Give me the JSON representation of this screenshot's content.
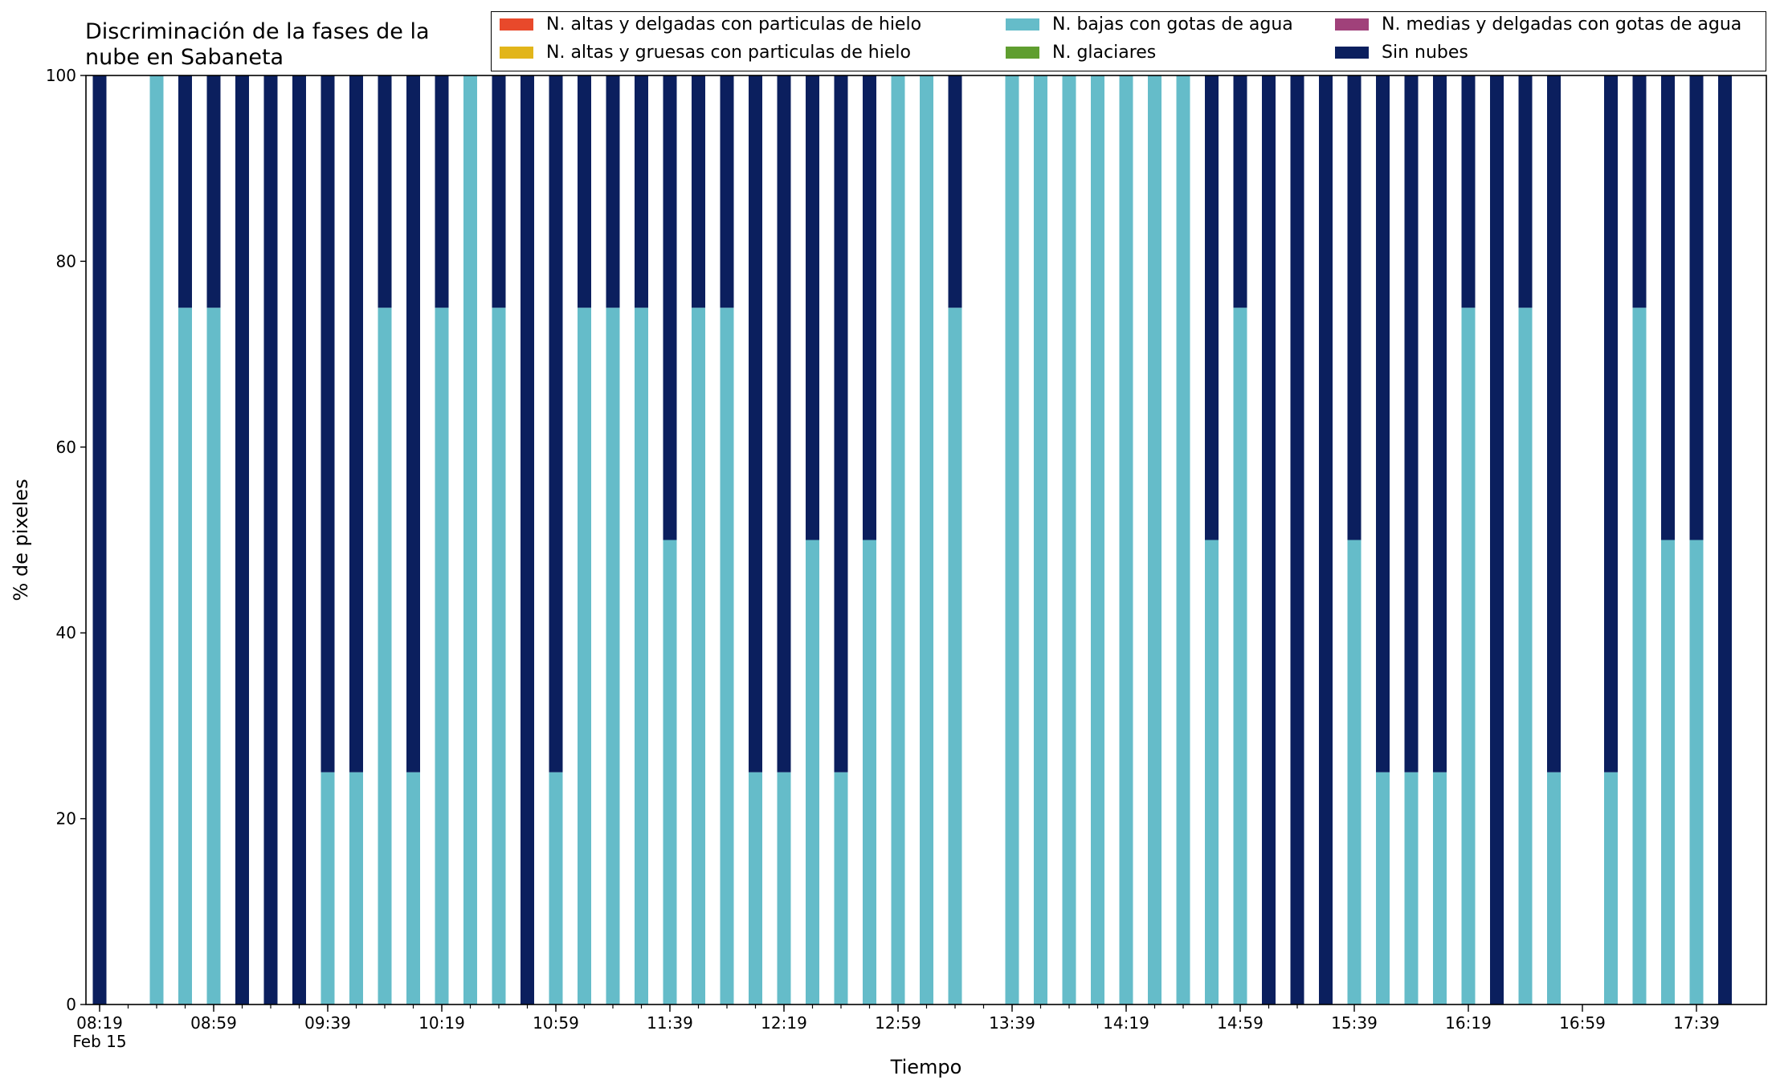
{
  "chart_data": {
    "type": "bar",
    "stacked": true,
    "title": "Discriminación de la fases de la\nnube en Sabaneta",
    "xlabel": "Tiempo",
    "ylabel": "% de pixeles",
    "ylim": [
      0,
      100
    ],
    "yticks": [
      "0",
      "20",
      "40",
      "60",
      "80",
      "100"
    ],
    "xtick_labels": [
      "08:19",
      "08:59",
      "09:39",
      "10:19",
      "10:59",
      "11:39",
      "12:19",
      "12:59",
      "13:39",
      "14:19",
      "14:59",
      "15:39",
      "16:19",
      "16:59",
      "17:39"
    ],
    "xtick_sublabel": "Feb 15",
    "grid": false,
    "legend_position": "top-right",
    "categories": [
      "08:19",
      "08:29",
      "08:39",
      "08:49",
      "08:59",
      "09:09",
      "09:19",
      "09:29",
      "09:39",
      "09:49",
      "09:59",
      "10:09",
      "10:19",
      "10:29",
      "10:39",
      "10:49",
      "10:59",
      "11:09",
      "11:19",
      "11:29",
      "11:39",
      "11:49",
      "11:59",
      "12:09",
      "12:19",
      "12:29",
      "12:39",
      "12:49",
      "12:59",
      "13:09",
      "13:19",
      "13:29",
      "13:39",
      "13:49",
      "13:59",
      "14:09",
      "14:19",
      "14:29",
      "14:39",
      "14:49",
      "14:59",
      "15:09",
      "15:19",
      "15:29",
      "15:39",
      "15:49",
      "15:59",
      "16:09",
      "16:19",
      "16:29",
      "16:39",
      "16:49",
      "16:59",
      "17:09",
      "17:19",
      "17:29",
      "17:39",
      "17:49"
    ],
    "series": [
      {
        "name": "N. altas y delgadas con particulas de hielo",
        "color": "#e8492b",
        "values": [
          0,
          0,
          0,
          0,
          0,
          0,
          0,
          0,
          0,
          0,
          0,
          0,
          0,
          0,
          0,
          0,
          0,
          0,
          0,
          0,
          0,
          0,
          0,
          0,
          0,
          0,
          0,
          0,
          0,
          0,
          0,
          0,
          0,
          0,
          0,
          0,
          0,
          0,
          0,
          0,
          0,
          0,
          0,
          0,
          0,
          0,
          0,
          0,
          0,
          0,
          0,
          0,
          0,
          0,
          0,
          0,
          0,
          0
        ]
      },
      {
        "name": "N. altas y gruesas con particulas de hielo",
        "color": "#e2b51a",
        "values": [
          0,
          0,
          0,
          0,
          0,
          0,
          0,
          0,
          0,
          0,
          0,
          0,
          0,
          0,
          0,
          0,
          0,
          0,
          0,
          0,
          0,
          0,
          0,
          0,
          0,
          0,
          0,
          0,
          0,
          0,
          0,
          0,
          0,
          0,
          0,
          0,
          0,
          0,
          0,
          0,
          0,
          0,
          0,
          0,
          0,
          0,
          0,
          0,
          0,
          0,
          0,
          0,
          0,
          0,
          0,
          0,
          0,
          0
        ]
      },
      {
        "name": "N. bajas con gotas de agua",
        "color": "#65bcc9",
        "values": [
          0,
          null,
          100,
          75,
          75,
          0,
          0,
          0,
          25,
          25,
          75,
          25,
          75,
          100,
          75,
          0,
          25,
          75,
          75,
          75,
          50,
          75,
          75,
          25,
          25,
          50,
          25,
          50,
          100,
          100,
          75,
          null,
          100,
          100,
          100,
          100,
          100,
          100,
          100,
          50,
          75,
          0,
          0,
          0,
          50,
          25,
          25,
          25,
          75,
          0,
          75,
          25,
          null,
          25,
          75,
          50,
          50,
          0
        ]
      },
      {
        "name": "N. glaciares",
        "color": "#5f9e2f",
        "values": [
          0,
          0,
          0,
          0,
          0,
          0,
          0,
          0,
          0,
          0,
          0,
          0,
          0,
          0,
          0,
          0,
          0,
          0,
          0,
          0,
          0,
          0,
          0,
          0,
          0,
          0,
          0,
          0,
          0,
          0,
          0,
          0,
          0,
          0,
          0,
          0,
          0,
          0,
          0,
          0,
          0,
          0,
          0,
          0,
          0,
          0,
          0,
          0,
          0,
          0,
          0,
          0,
          0,
          0,
          0,
          0,
          0,
          0
        ]
      },
      {
        "name": "N. medias y delgadas con gotas de agua",
        "color": "#a0417a",
        "values": [
          0,
          0,
          0,
          0,
          0,
          0,
          0,
          0,
          0,
          0,
          0,
          0,
          0,
          0,
          0,
          0,
          0,
          0,
          0,
          0,
          0,
          0,
          0,
          0,
          0,
          0,
          0,
          0,
          0,
          0,
          0,
          0,
          0,
          0,
          0,
          0,
          0,
          0,
          0,
          0,
          0,
          0,
          0,
          0,
          0,
          0,
          0,
          0,
          0,
          0,
          0,
          0,
          0,
          0,
          0,
          0,
          0,
          0
        ]
      },
      {
        "name": "Sin nubes",
        "color": "#0b1f5e",
        "values": [
          100,
          null,
          0,
          25,
          25,
          100,
          100,
          100,
          75,
          75,
          25,
          75,
          25,
          0,
          25,
          100,
          75,
          25,
          25,
          25,
          50,
          25,
          25,
          75,
          75,
          50,
          75,
          50,
          0,
          0,
          25,
          null,
          0,
          0,
          0,
          0,
          0,
          0,
          0,
          50,
          25,
          100,
          100,
          100,
          50,
          75,
          75,
          75,
          25,
          100,
          25,
          75,
          null,
          75,
          25,
          50,
          50,
          100
        ]
      }
    ]
  }
}
